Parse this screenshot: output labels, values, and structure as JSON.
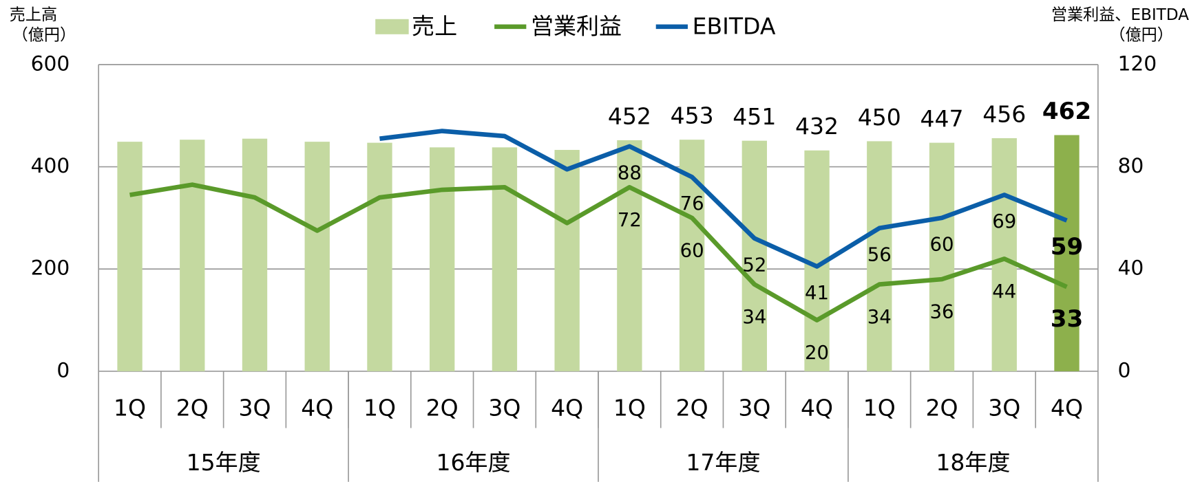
{
  "chart_data": {
    "type": "bar-line-combo",
    "legend_position": "top",
    "y_axis_label": [
      "売上高",
      "（億円）"
    ],
    "y2_axis_label": [
      "営業利益、EBITDA",
      "（億円）"
    ],
    "categories": [
      "1Q",
      "2Q",
      "3Q",
      "4Q",
      "1Q",
      "2Q",
      "3Q",
      "4Q",
      "1Q",
      "2Q",
      "3Q",
      "4Q",
      "1Q",
      "2Q",
      "3Q",
      "4Q"
    ],
    "groups": [
      {
        "label": "15年度",
        "span": 4
      },
      {
        "label": "16年度",
        "span": 4
      },
      {
        "label": "17年度",
        "span": 4
      },
      {
        "label": "18年度",
        "span": 4
      }
    ],
    "ylim": [
      0,
      600
    ],
    "yticks": [
      0,
      200,
      400,
      600
    ],
    "y2lim": [
      0,
      120
    ],
    "y2ticks": [
      0,
      40,
      80,
      120
    ],
    "grid": true,
    "series": [
      {
        "name": "売上",
        "kind": "bar",
        "color": "#c4d9a0",
        "colors": [
          "#c4d9a0",
          "#c4d9a0",
          "#c4d9a0",
          "#c4d9a0",
          "#c4d9a0",
          "#c4d9a0",
          "#c4d9a0",
          "#c4d9a0",
          "#c4d9a0",
          "#c4d9a0",
          "#c4d9a0",
          "#c4d9a0",
          "#c4d9a0",
          "#c4d9a0",
          "#c4d9a0",
          "#8db04c"
        ],
        "values": [
          449,
          453,
          455,
          449,
          447,
          438,
          438,
          433,
          452,
          453,
          451,
          432,
          450,
          447,
          456,
          462
        ],
        "value_labels": [
          null,
          null,
          null,
          null,
          null,
          null,
          null,
          null,
          "452",
          "453",
          "451",
          "432",
          "450",
          "447",
          "456",
          "462"
        ]
      },
      {
        "name": "営業利益",
        "kind": "line",
        "axis": "y2",
        "color": "#5a9a2a",
        "values": [
          69,
          73,
          68,
          55,
          68,
          71,
          72,
          58,
          72,
          60,
          34,
          20,
          34,
          36,
          44,
          33
        ],
        "value_labels": [
          null,
          null,
          null,
          null,
          null,
          null,
          null,
          null,
          "72",
          "60",
          "34",
          "20",
          "34",
          "36",
          "44",
          "33"
        ]
      },
      {
        "name": "EBITDA",
        "kind": "line",
        "axis": "y2",
        "color": "#0b5ea8",
        "values": [
          null,
          null,
          null,
          null,
          91,
          94,
          92,
          79,
          88,
          76,
          52,
          41,
          56,
          60,
          69,
          59
        ],
        "value_labels": [
          null,
          null,
          null,
          null,
          null,
          null,
          null,
          null,
          "88",
          "76",
          "52",
          "41",
          "56",
          "60",
          "69",
          "59"
        ]
      }
    ]
  }
}
